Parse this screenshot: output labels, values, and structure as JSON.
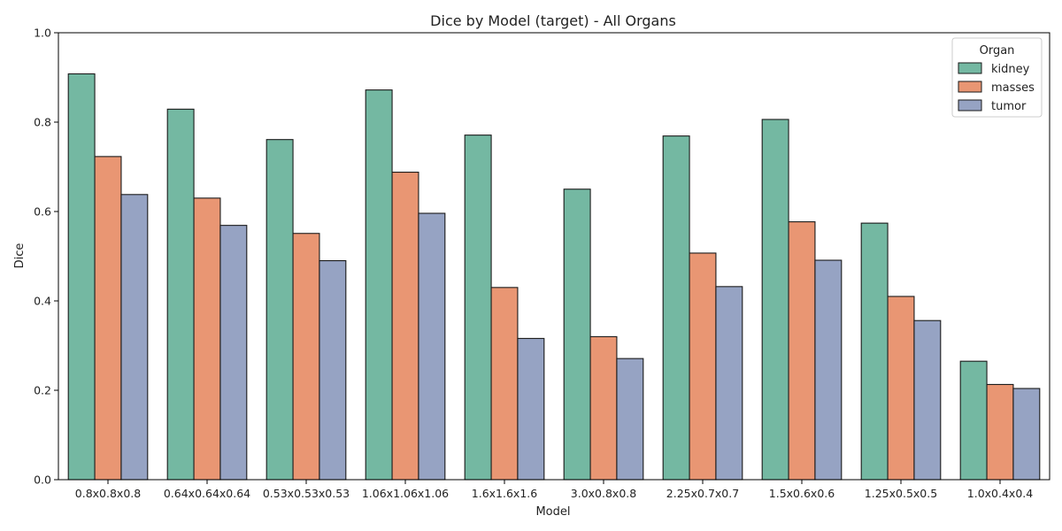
{
  "chart_data": {
    "type": "bar",
    "title": "Dice by Model (target) - All Organs",
    "xlabel": "Model",
    "ylabel": "Dice",
    "ylim": [
      0,
      1.0
    ],
    "yticks": [
      "0.0",
      "0.2",
      "0.4",
      "0.6",
      "0.8",
      "1.0"
    ],
    "grid": false,
    "categories": [
      "0.8x0.8x0.8",
      "0.64x0.64x0.64",
      "0.53x0.53x0.53",
      "1.06x1.06x1.06",
      "1.6x1.6x1.6",
      "3.0x0.8x0.8",
      "2.25x0.7x0.7",
      "1.5x0.6x0.6",
      "1.25x0.5x0.5",
      "1.0x0.4x0.4"
    ],
    "legend": {
      "title": "Organ",
      "placement": "top-right"
    },
    "series": [
      {
        "name": "kidney",
        "color": "#74b8a2",
        "values": [
          0.908,
          0.829,
          0.761,
          0.872,
          0.771,
          0.65,
          0.769,
          0.806,
          0.574,
          0.265
        ]
      },
      {
        "name": "masses",
        "color": "#e99673",
        "values": [
          0.723,
          0.63,
          0.551,
          0.688,
          0.43,
          0.32,
          0.507,
          0.577,
          0.41,
          0.213
        ]
      },
      {
        "name": "tumor",
        "color": "#96a3c3",
        "values": [
          0.638,
          0.569,
          0.49,
          0.596,
          0.316,
          0.271,
          0.432,
          0.491,
          0.356,
          0.204
        ]
      }
    ]
  }
}
